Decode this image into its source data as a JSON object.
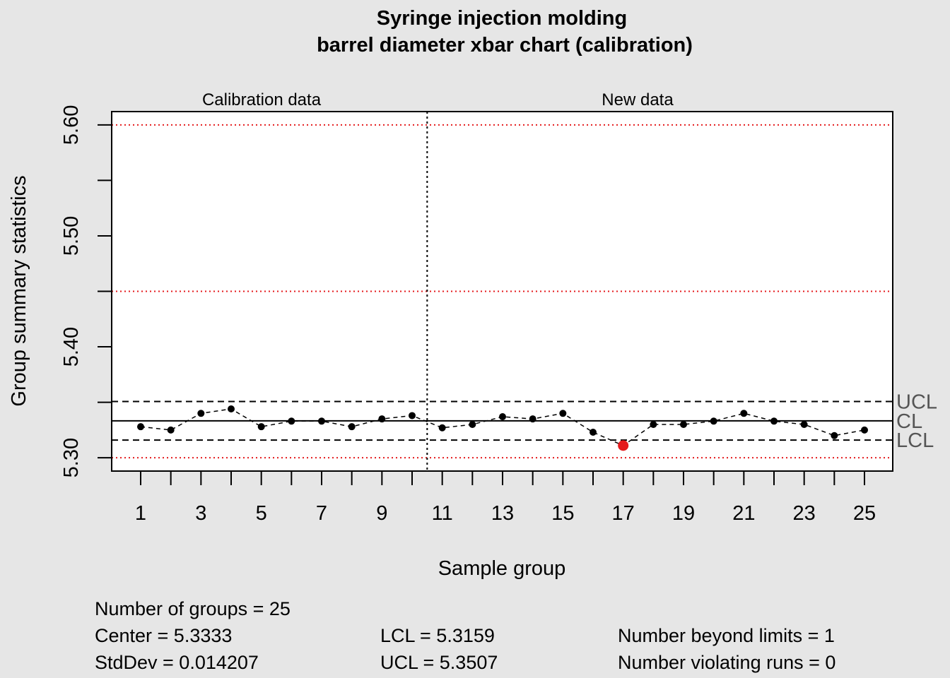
{
  "chart_data": {
    "type": "line",
    "title_line1": "Syringe injection molding",
    "title_line2": "barrel diameter xbar chart (calibration)",
    "xlabel": "Sample group",
    "ylabel": "Group summary statistics",
    "ylim": [
      5.288,
      5.612
    ],
    "yticks": [
      5.3,
      5.4,
      5.5,
      5.6
    ],
    "ytick_labels": [
      "5.30",
      "5.40",
      "5.50",
      "5.60"
    ],
    "x_labeled_ticks": [
      1,
      3,
      5,
      7,
      9,
      11,
      13,
      15,
      17,
      19,
      21,
      23,
      25
    ],
    "section_labels": [
      "Calibration data",
      "New data"
    ],
    "section_split_after": 10,
    "center": 5.3333,
    "ucl": 5.3507,
    "lcl": 5.3159,
    "spec_lines": [
      5.3,
      5.45,
      5.6
    ],
    "limit_labels": {
      "ucl": "UCL",
      "cl": "CL",
      "lcl": "LCL"
    },
    "x": [
      1,
      2,
      3,
      4,
      5,
      6,
      7,
      8,
      9,
      10,
      11,
      12,
      13,
      14,
      15,
      16,
      17,
      18,
      19,
      20,
      21,
      22,
      23,
      24,
      25
    ],
    "values": [
      5.328,
      5.325,
      5.34,
      5.344,
      5.328,
      5.333,
      5.333,
      5.328,
      5.335,
      5.338,
      5.327,
      5.33,
      5.337,
      5.335,
      5.34,
      5.323,
      5.311,
      5.33,
      5.33,
      5.333,
      5.34,
      5.333,
      5.33,
      5.32,
      5.325
    ],
    "out_of_control": [
      17
    ]
  },
  "colors": {
    "background": "#e6e6e6",
    "plot_bg": "#ffffff",
    "spec_line": "#e41a1c",
    "violation": "#e41a1c",
    "limit_label": "#555555"
  },
  "stats": {
    "groups": "Number of groups = 25",
    "center": "Center = 5.3333",
    "stddev": "StdDev = 0.014207",
    "lcl": "LCL = 5.3159",
    "ucl": "UCL = 5.3507",
    "beyond": "Number beyond limits = 1",
    "runs": "Number violating runs = 0"
  }
}
